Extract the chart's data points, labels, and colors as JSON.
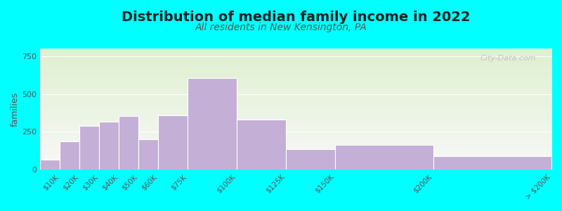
{
  "title": "Distribution of median family income in 2022",
  "subtitle": "All residents in New Kensington, PA",
  "ylabel": "families",
  "categories": [
    "$10K",
    "$20K",
    "$30K",
    "$40K",
    "$50K",
    "$60K",
    "$75K",
    "$100K",
    "$125K",
    "$150K",
    "$200K",
    "> $200K"
  ],
  "bin_edges": [
    0,
    10,
    20,
    30,
    40,
    50,
    60,
    75,
    100,
    125,
    150,
    200,
    260
  ],
  "values": [
    65,
    185,
    290,
    315,
    355,
    200,
    360,
    605,
    330,
    135,
    165,
    90
  ],
  "bar_color": "#c4afd6",
  "bar_edge_color": "#ffffff",
  "ylim": [
    0,
    800
  ],
  "yticks": [
    0,
    250,
    500,
    750
  ],
  "background_color": "#00ffff",
  "plot_bg_top": "#dff0d0",
  "plot_bg_bottom": "#f8f8f8",
  "title_fontsize": 14,
  "subtitle_fontsize": 10,
  "watermark": "City-Data.com"
}
